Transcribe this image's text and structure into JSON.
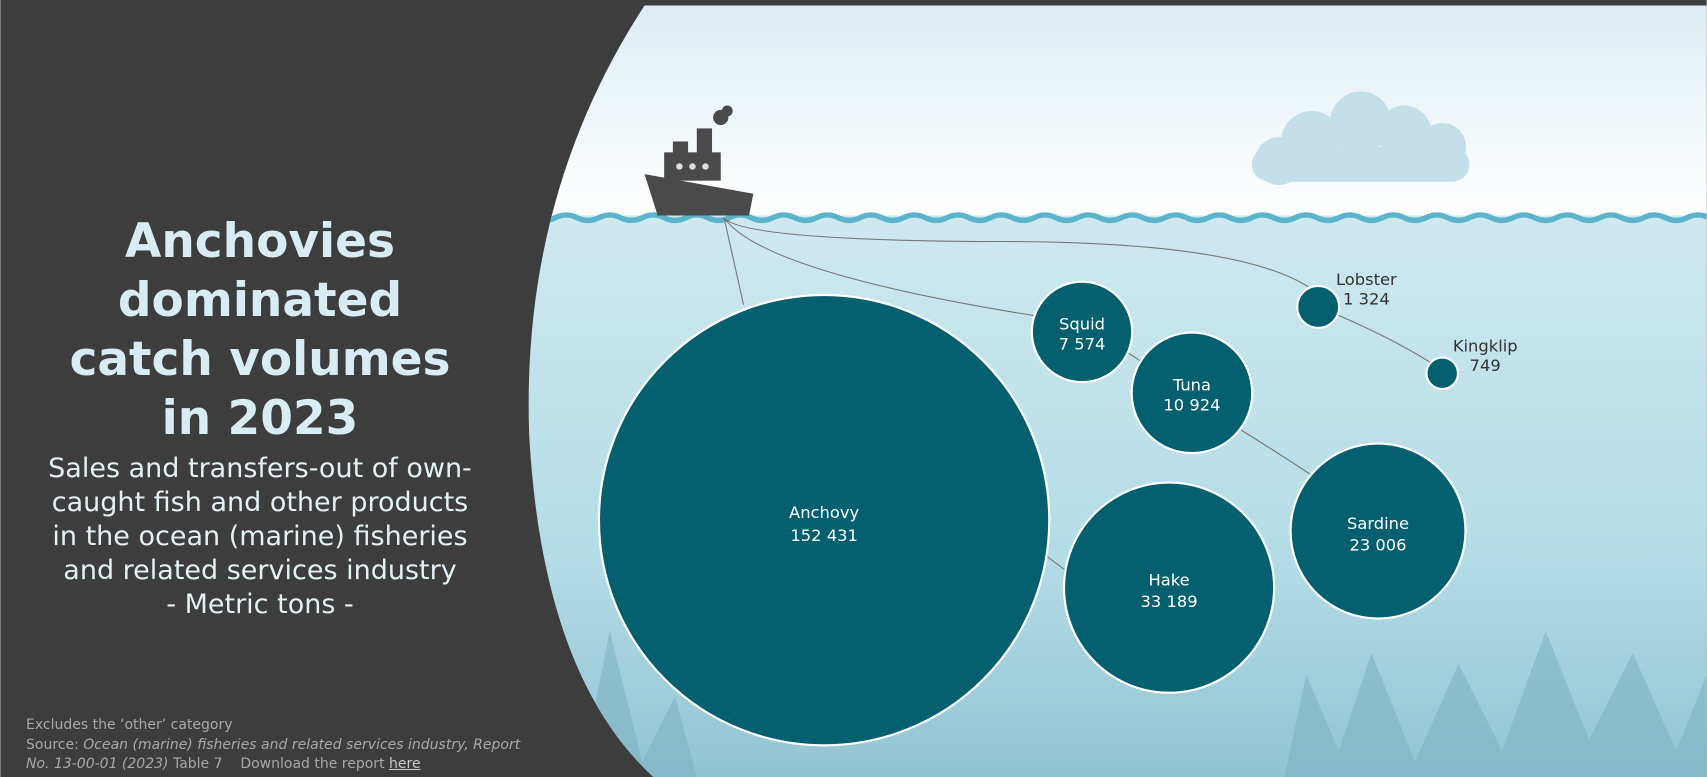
{
  "title": "Anchovies dominated catch volumes in 2023",
  "subtitle": "Sales and transfers-out of own-caught fish and other products in the ocean (marine) fisheries and related services industry",
  "unit": "- Metric tons -",
  "chart_data": {
    "type": "bubble",
    "categories": [
      "Anchovy",
      "Hake",
      "Sardine",
      "Tuna",
      "Squid",
      "Lobster",
      "Kingklip"
    ],
    "values": [
      152431,
      33189,
      23006,
      10924,
      7574,
      1324,
      749
    ],
    "value_labels": [
      "152 431",
      "33 189",
      "23 006",
      "10 924",
      "7 574",
      "1 324",
      "749"
    ],
    "color": "#04606f"
  },
  "footer": {
    "note": "Excludes the ‘other’ category",
    "source_label": "Source:",
    "source_title": "Ocean (marine) fisheries and related services industry, Report No. 13-00-01 (2023)",
    "source_table": "Table 7",
    "download_text": "Download the report",
    "link": "here"
  }
}
